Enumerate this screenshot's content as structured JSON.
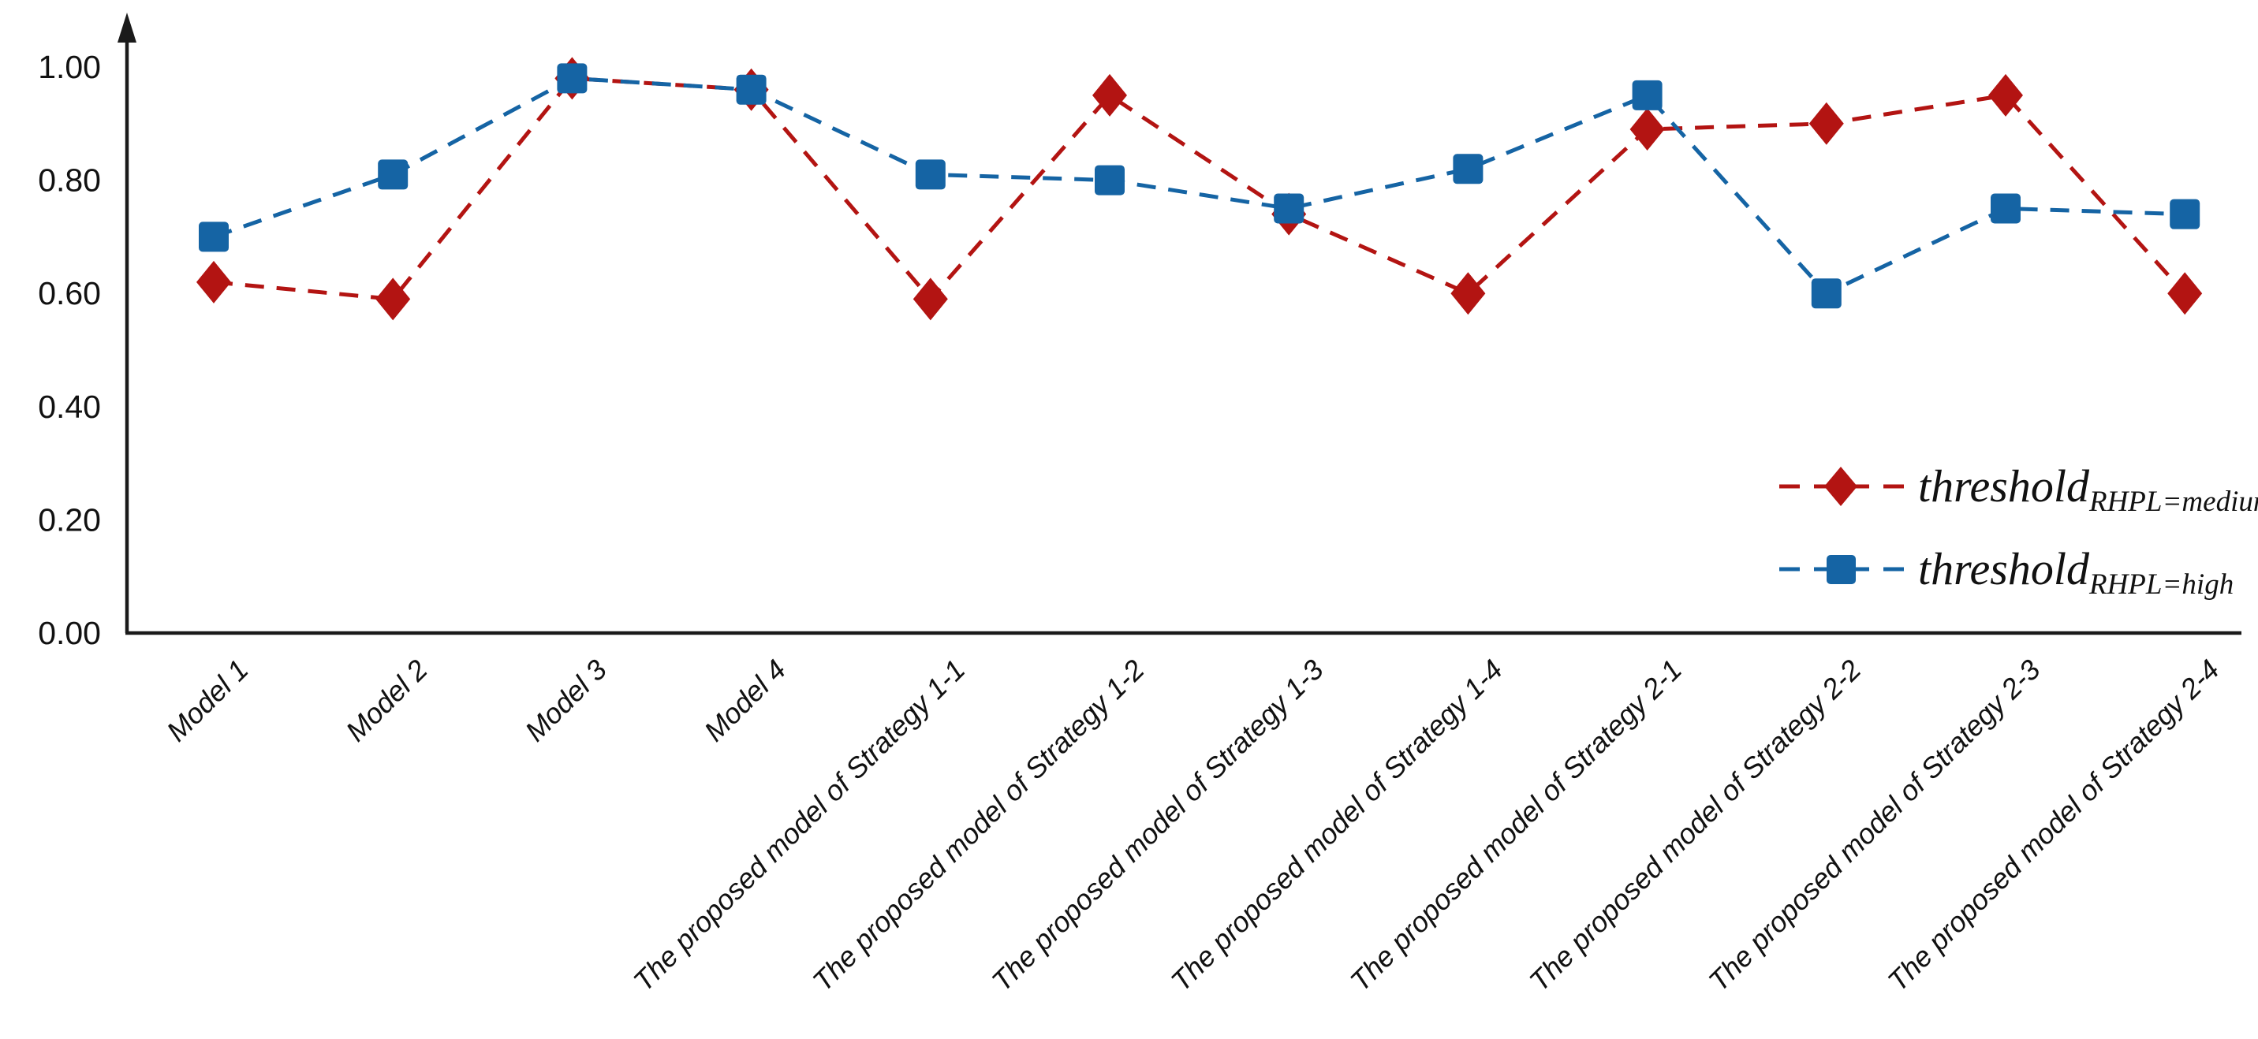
{
  "chart_data": {
    "type": "line",
    "title": "",
    "xlabel": "",
    "ylabel": "",
    "grid": false,
    "line_style": "dashed",
    "legend_position": "middle-right",
    "ylim": [
      0.0,
      1.0
    ],
    "y_ticks": [
      0.0,
      0.2,
      0.4,
      0.6,
      0.8,
      1.0
    ],
    "y_tick_labels": [
      "0.00",
      "0.20",
      "0.40",
      "0.60",
      "0.80",
      "1.00"
    ],
    "categories": [
      "Model 1",
      "Model 2",
      "Model 3",
      "Model 4",
      "The proposed model of Strategy 1-1",
      "The proposed model of Strategy 1-2",
      "The proposed model of Strategy 1-3",
      "The proposed model of Strategy 1-4",
      "The proposed model of Strategy 2-1",
      "The proposed model of Strategy 2-2",
      "The proposed model of Strategy 2-3",
      "The proposed model of Strategy 2-4"
    ],
    "series": [
      {
        "name": "threshold_RHPL=medium",
        "legend_main": "threshold",
        "legend_sub": "RHPL=medium",
        "marker": "diamond",
        "color": "#B31412",
        "values": [
          0.62,
          0.59,
          0.98,
          0.96,
          0.59,
          0.95,
          0.74,
          0.6,
          0.89,
          0.9,
          0.95,
          0.6
        ]
      },
      {
        "name": "threshold_RHPL=high",
        "legend_main": "threshold",
        "legend_sub": "RHPL=high",
        "marker": "square",
        "color": "#1564A4",
        "values": [
          0.7,
          0.81,
          0.98,
          0.96,
          0.81,
          0.8,
          0.75,
          0.82,
          0.95,
          0.6,
          0.75,
          0.74
        ]
      }
    ]
  },
  "axis": {
    "color": "#1a1a1a"
  },
  "background": "#ffffff"
}
